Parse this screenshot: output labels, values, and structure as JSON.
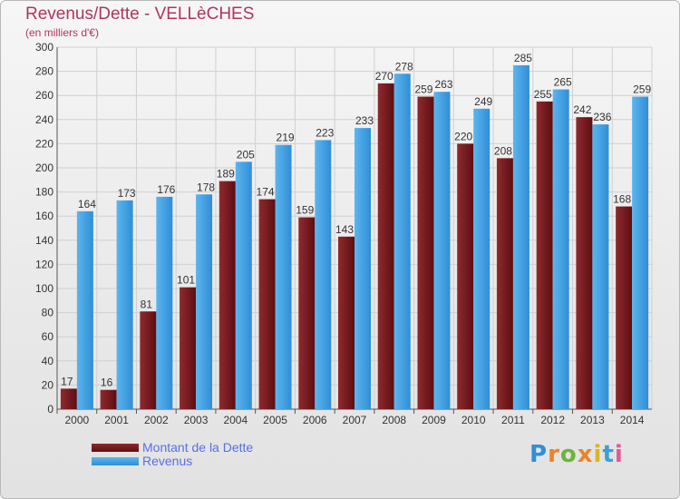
{
  "title": "Revenus/Dette - VELLèCHES",
  "subtitle": "(en milliers d'€)",
  "logo": "Proxiti",
  "colors": {
    "debt": "#7a1a1e",
    "revenue": "#3d9de3",
    "text_accent": "#b0355c",
    "legend_text": "#5570e6"
  },
  "chart_data": {
    "type": "bar",
    "title": "Revenus/Dette - VELLèCHES",
    "subtitle": "(en milliers d'€)",
    "categories": [
      "2000",
      "2001",
      "2002",
      "2003",
      "2004",
      "2005",
      "2006",
      "2007",
      "2008",
      "2009",
      "2010",
      "2011",
      "2012",
      "2013",
      "2014"
    ],
    "series": [
      {
        "name": "Montant de la Dette",
        "values": [
          17,
          16,
          81,
          101,
          189,
          174,
          159,
          143,
          270,
          259,
          220,
          208,
          255,
          242,
          168
        ]
      },
      {
        "name": "Revenus",
        "values": [
          164,
          173,
          176,
          178,
          205,
          219,
          223,
          233,
          278,
          263,
          249,
          285,
          265,
          236,
          259
        ]
      }
    ],
    "ylim": [
      0,
      300
    ],
    "yticks": [
      0,
      20,
      40,
      60,
      80,
      100,
      120,
      140,
      160,
      180,
      200,
      220,
      240,
      260,
      280,
      300
    ],
    "grid": true,
    "legend": "bottom-left"
  }
}
